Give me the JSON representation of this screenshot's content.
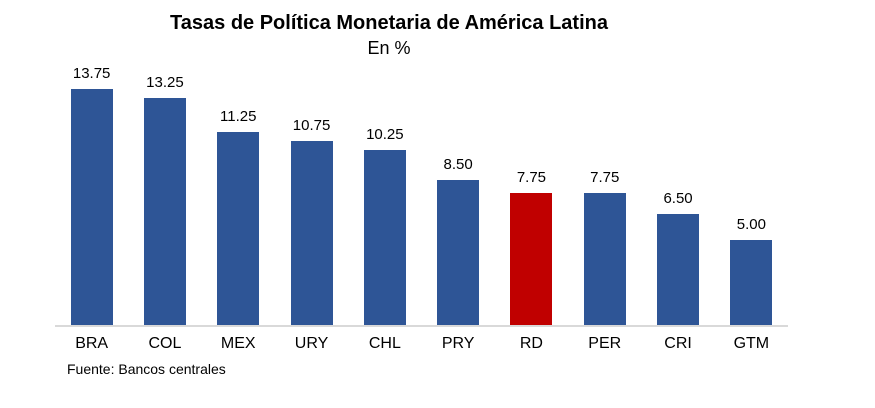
{
  "chart_data": {
    "type": "bar",
    "title": "Tasas de Política Monetaria de América Latina",
    "subtitle": "En %",
    "source": "Fuente: Bancos centrales",
    "xlabel": "",
    "ylabel": "",
    "categories": [
      "BRA",
      "COL",
      "MEX",
      "URY",
      "CHL",
      "PRY",
      "RD",
      "PER",
      "CRI",
      "GTM"
    ],
    "values": [
      13.75,
      13.25,
      11.25,
      10.75,
      10.25,
      8.5,
      7.75,
      7.75,
      6.5,
      5.0
    ],
    "value_labels": [
      "13.75",
      "13.25",
      "11.25",
      "10.75",
      "10.25",
      "8.50",
      "7.75",
      "7.75",
      "6.50",
      "5.00"
    ],
    "highlighted_category": "RD",
    "bar_color": "#2E5596",
    "highlight_color": "#C00000",
    "axis_line_color": "#D9D9D9",
    "ylim": [
      0,
      14
    ],
    "grid": false,
    "legend": false
  }
}
